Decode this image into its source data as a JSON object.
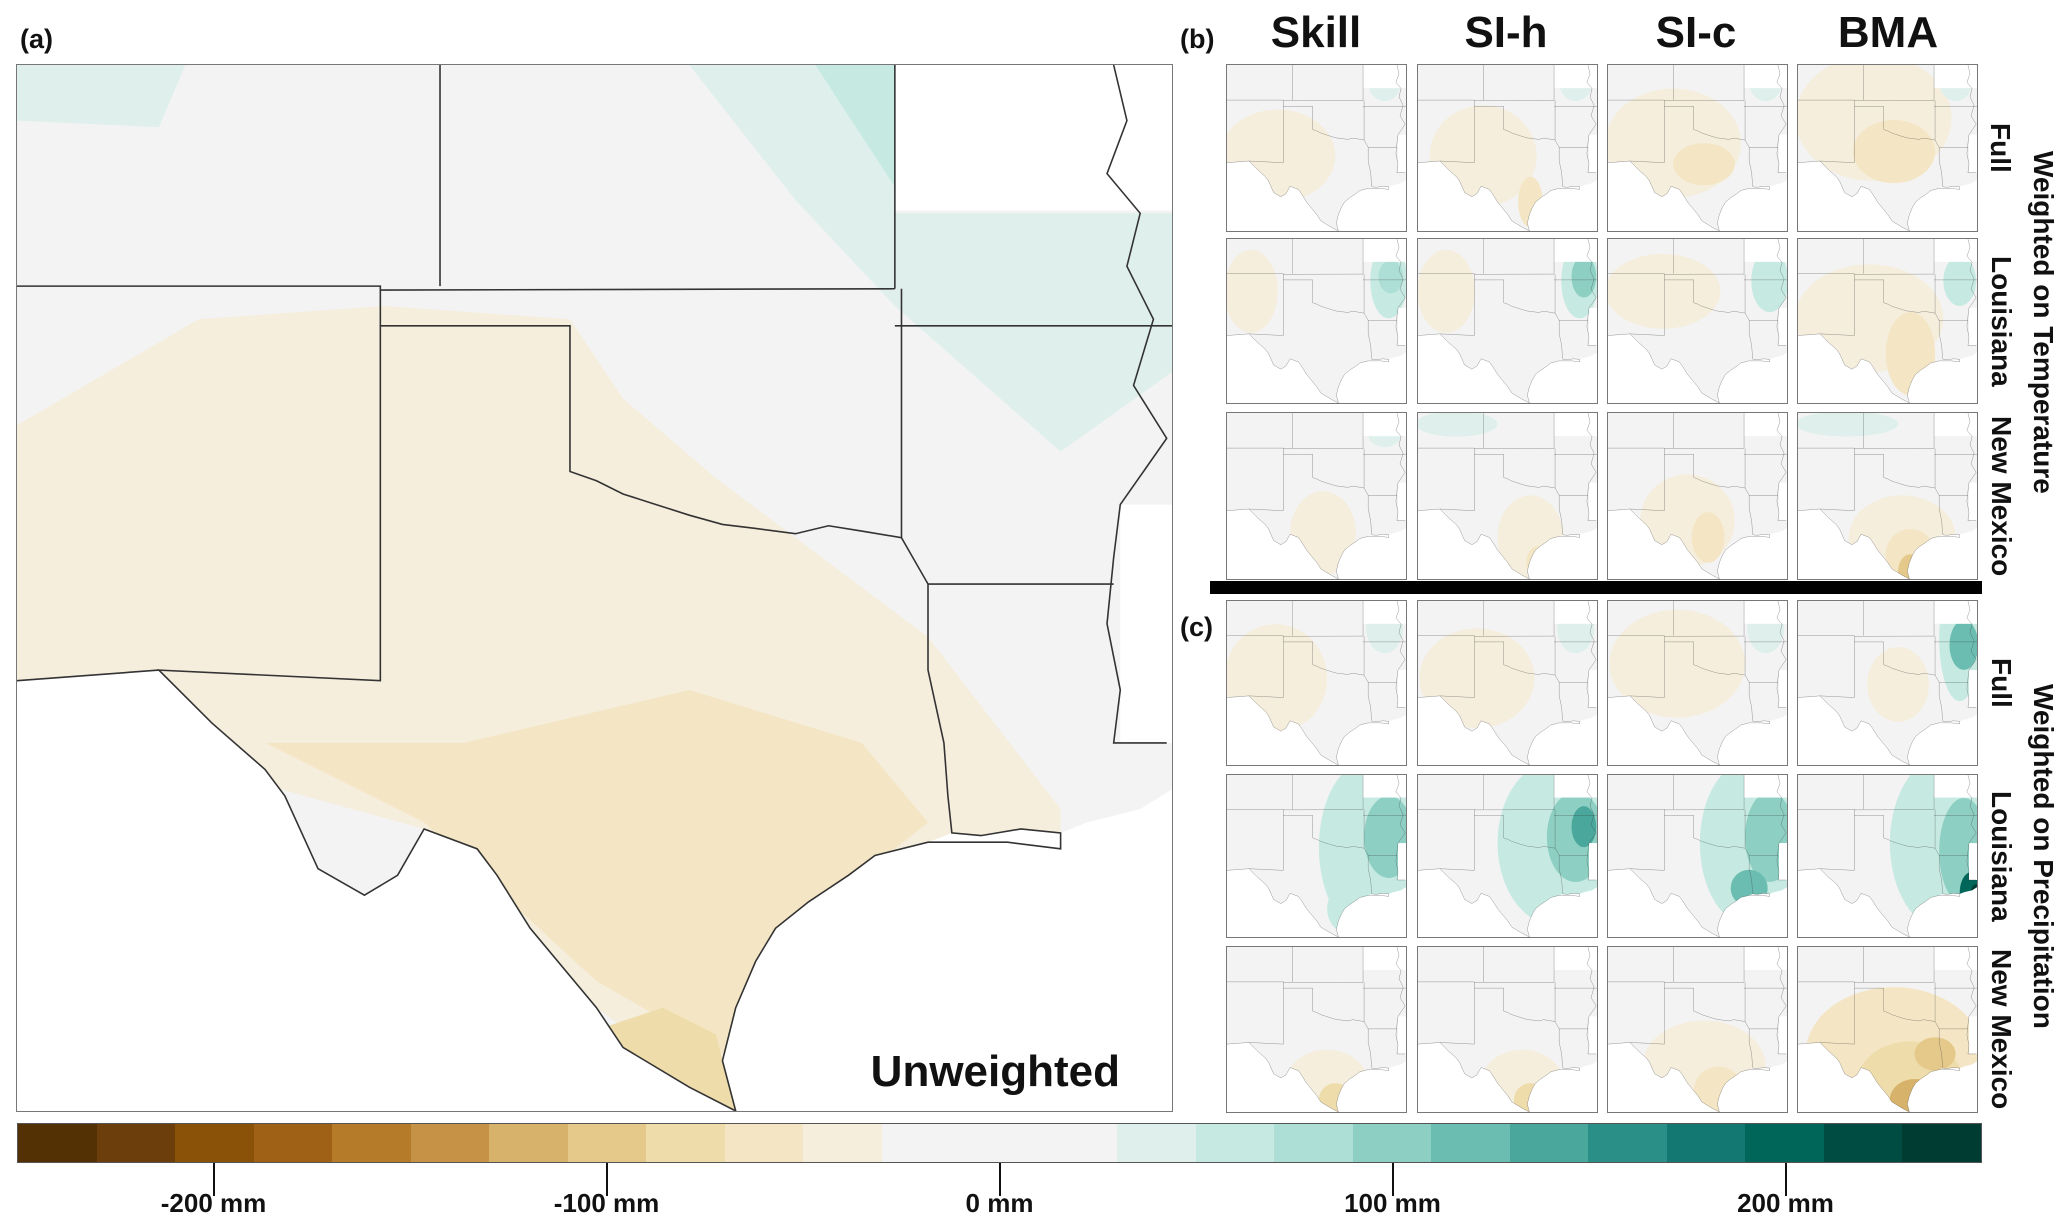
{
  "panel_labels": {
    "a": "(a)",
    "b": "(b)",
    "c": "(c)"
  },
  "main_map_title": "Unweighted",
  "columns": [
    "Skill",
    "SI-h",
    "SI-c",
    "BMA"
  ],
  "rows": [
    "Full",
    "Louisiana",
    "New Mexico"
  ],
  "groups": [
    "Weighted on Temperature",
    "Weighted on Precipitation"
  ],
  "chart_data": {
    "type": "heatmap",
    "title": "",
    "description_units": "mm",
    "colorbar": {
      "range": [
        -250,
        250
      ],
      "bin_width": 20,
      "ticks": [
        -200,
        -100,
        0,
        100,
        200
      ],
      "tick_labels": [
        "-200 mm",
        "-100 mm",
        "0 mm",
        "100 mm",
        "200 mm"
      ],
      "colors": [
        "#543005",
        "#6b3e0b",
        "#8a5109",
        "#9e6116",
        "#b57b29",
        "#c69245",
        "#d7b26a",
        "#e4c98a",
        "#eedcaa",
        "#f4e6c4",
        "#f5eedd",
        "#f3f3f3",
        "#f3f3f3",
        "#f3f3f3",
        "#dff0ec",
        "#c6eae2",
        "#aedfd6",
        "#8ecfc3",
        "#6bbdb2",
        "#4aa79b",
        "#2a8f86",
        "#137871",
        "#00665a",
        "#004c42",
        "#003c31"
      ]
    }
  }
}
